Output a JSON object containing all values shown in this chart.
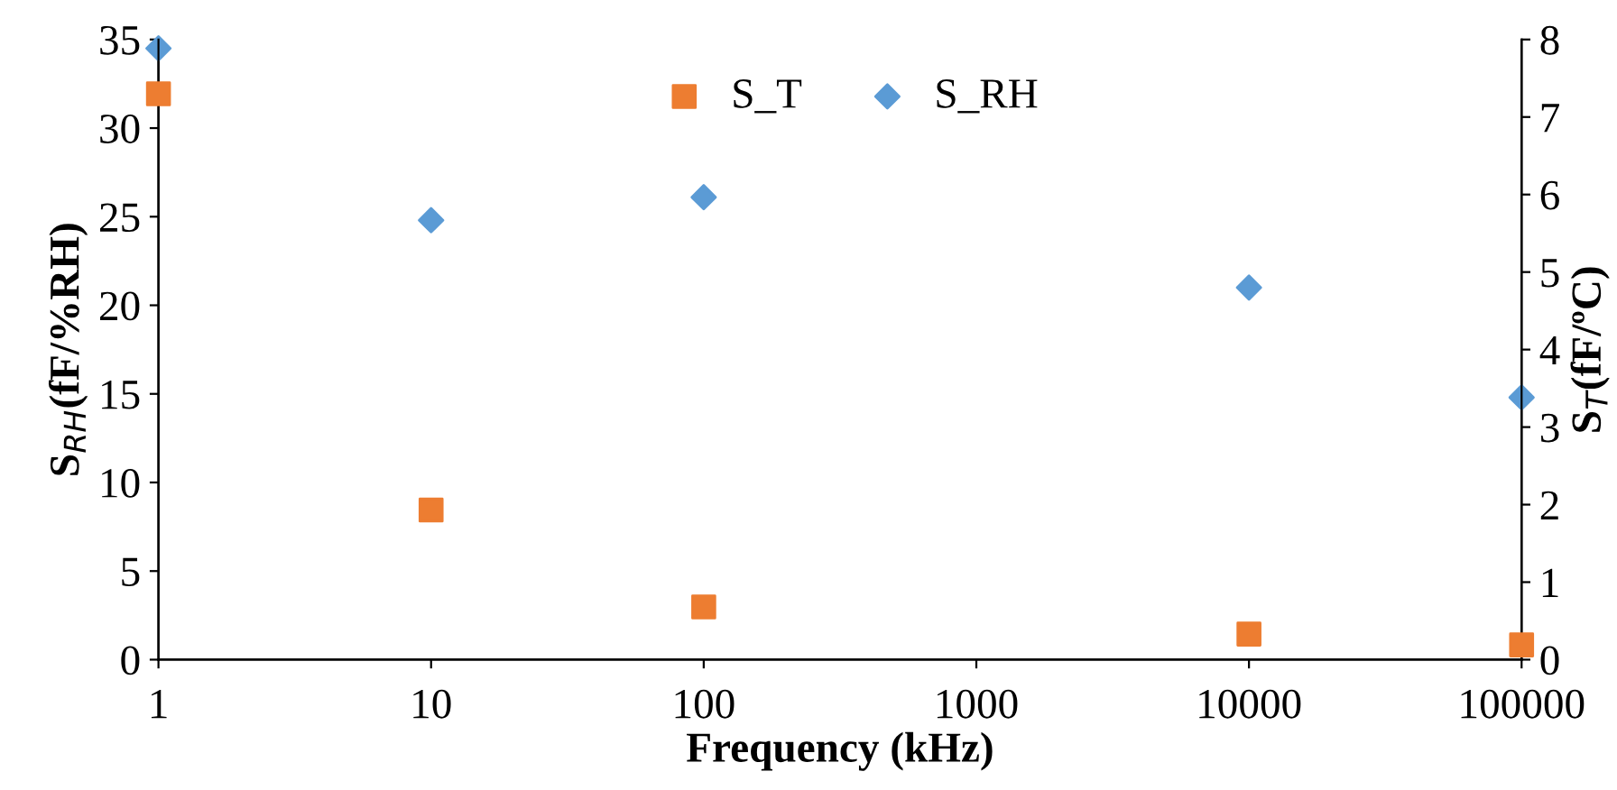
{
  "chart_data": {
    "type": "scatter",
    "xlabel": "Frequency (kHz)",
    "ylabel": "S$_{RH}$(fF/%RH)",
    "y2label": "S$_{T}$(fF/ºC)",
    "x": [
      1,
      10,
      100,
      10000,
      100000
    ],
    "series": [
      {
        "name": "S_T",
        "color": "#ed7d31",
        "marker": "square",
        "axis": "y2",
        "values": [
          7.3,
          1.93,
          0.68,
          0.33,
          0.19
        ]
      },
      {
        "name": "S_RH",
        "color": "#5b9bd5",
        "marker": "diamond",
        "axis": "y",
        "values": [
          34.5,
          24.8,
          26.1,
          21.0,
          14.8
        ]
      }
    ],
    "log": "x",
    "xlim": [
      1,
      100000
    ],
    "xticks": [
      1,
      10,
      100,
      1000,
      10000,
      100000
    ],
    "ylim": [
      0,
      35
    ],
    "yticks": [
      0,
      5,
      10,
      15,
      20,
      25,
      30,
      35
    ],
    "y2lim": [
      0,
      8
    ],
    "y2ticks": [
      0,
      1,
      2,
      3,
      4,
      5,
      6,
      7,
      8
    ],
    "grid": false,
    "legend": "top"
  }
}
